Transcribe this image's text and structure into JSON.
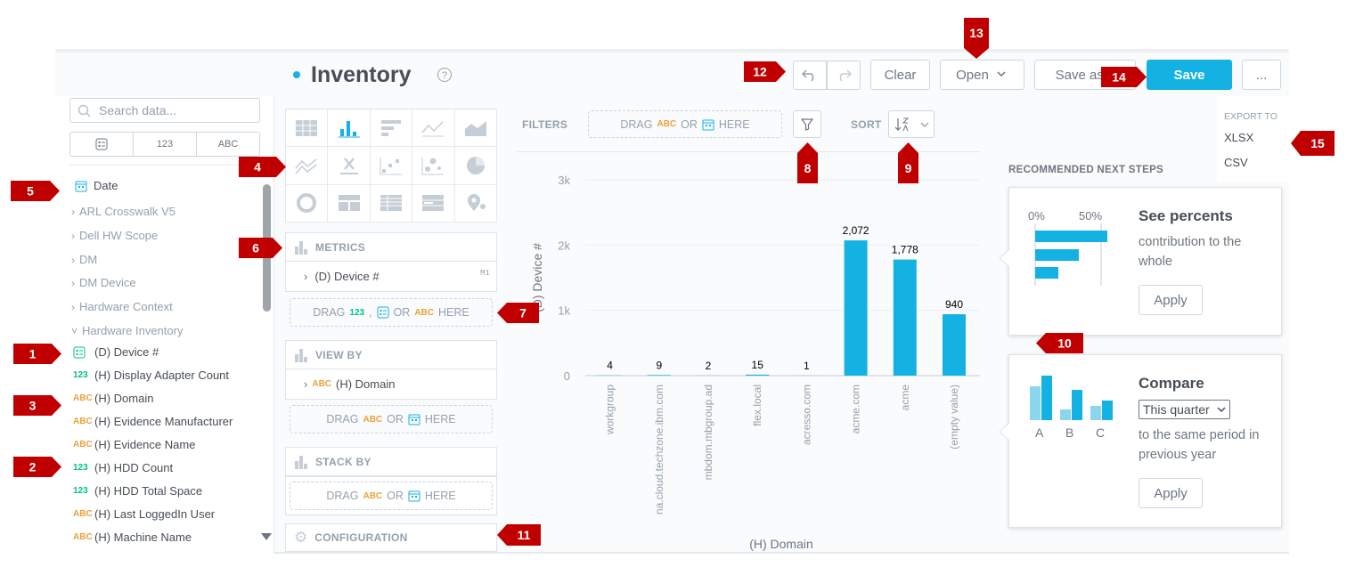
{
  "header": {
    "title": "Inventory",
    "buttons": [
      "Clear",
      "Open",
      "Save as n",
      "Save",
      "..."
    ]
  },
  "toolbar": {
    "filters": "FILTERS",
    "filter_drop": [
      "DRAG",
      "ABC",
      "OR",
      "HERE"
    ],
    "sort": "SORT"
  },
  "export": {
    "title": "EXPORT TO",
    "options": [
      "XLSX",
      "CSV"
    ]
  },
  "sidebar": {
    "search": "Search data...",
    "tabs": [
      "123",
      "ABC"
    ],
    "date": "Date",
    "folders": [
      "ARL Crosswalk V5",
      "Dell HW Scope",
      "DM",
      "DM Device",
      "Hardware Context",
      "Hardware Inventory"
    ],
    "items": [
      {
        "label": "(D) Device #"
      },
      {
        "type": "123",
        "label": "(H) Display Adapter Count"
      },
      {
        "type": "ABC",
        "label": "(H) Domain"
      },
      {
        "type": "ABC",
        "label": "(H) Evidence Manufacturer"
      },
      {
        "type": "ABC",
        "label": "(H) Evidence Name"
      },
      {
        "type": "123",
        "label": "(H) HDD Count"
      },
      {
        "type": "123",
        "label": "(H) HDD Total Space"
      },
      {
        "type": "ABC",
        "label": "(H) Last LoggedIn User"
      },
      {
        "type": "ABC",
        "label": "(H) Machine Name"
      }
    ]
  },
  "buckets": {
    "metrics": {
      "title": "METRICS",
      "item": "(D) Device #",
      "tag": "M1",
      "drop": [
        "DRAG",
        "123",
        ",",
        "OR",
        "ABC",
        "HERE"
      ]
    },
    "view_by": {
      "title": "VIEW BY",
      "item_type": "ABC",
      "item": "(H) Domain",
      "drop": [
        "DRAG",
        "ABC",
        "OR",
        "HERE"
      ]
    },
    "stack_by": {
      "title": "STACK BY",
      "drop": [
        "DRAG",
        "ABC",
        "OR",
        "HERE"
      ]
    },
    "configuration": "CONFIGURATION"
  },
  "chart_data": {
    "type": "bar",
    "categories": [
      "workgroup",
      "na.cloud.techzone.ibm.com",
      "mbdom.mbgroup.ad",
      "flex.local",
      "acresso.com",
      "acme.com",
      "acme",
      "(empty value)"
    ],
    "values": [
      4,
      9,
      2,
      15,
      1,
      2072,
      1778,
      940
    ],
    "value_labels": [
      "4",
      "9",
      "2",
      "15",
      "1",
      "2,072",
      "1,778",
      "940"
    ],
    "color": "#14b2e2",
    "ylim": [
      0,
      3000
    ],
    "yticks": [
      0,
      {
        "value": 1000,
        "label": "1k"
      },
      {
        "value": 2000,
        "label": "2k"
      },
      {
        "value": 3000,
        "label": "3k"
      }
    ],
    "ylabel": "(D) Device #",
    "xlabel": "(H) Domain",
    "grid": true
  },
  "recommendations": {
    "title": "RECOMMENDED NEXT STEPS",
    "cards": [
      {
        "axis": [
          "0%",
          "50%"
        ],
        "title": "See percents",
        "text": "contribution to the whole",
        "button": "Apply"
      },
      {
        "title": "Compare",
        "select": "This quarter",
        "legend": [
          "A",
          "B",
          "C"
        ],
        "text": "to the same period in previous year",
        "button": "Apply"
      }
    ]
  },
  "callouts": [
    "1",
    "2",
    "3",
    "4",
    "5",
    "6",
    "7",
    "8",
    "9",
    "10",
    "11",
    "12",
    "13",
    "14",
    "15"
  ]
}
